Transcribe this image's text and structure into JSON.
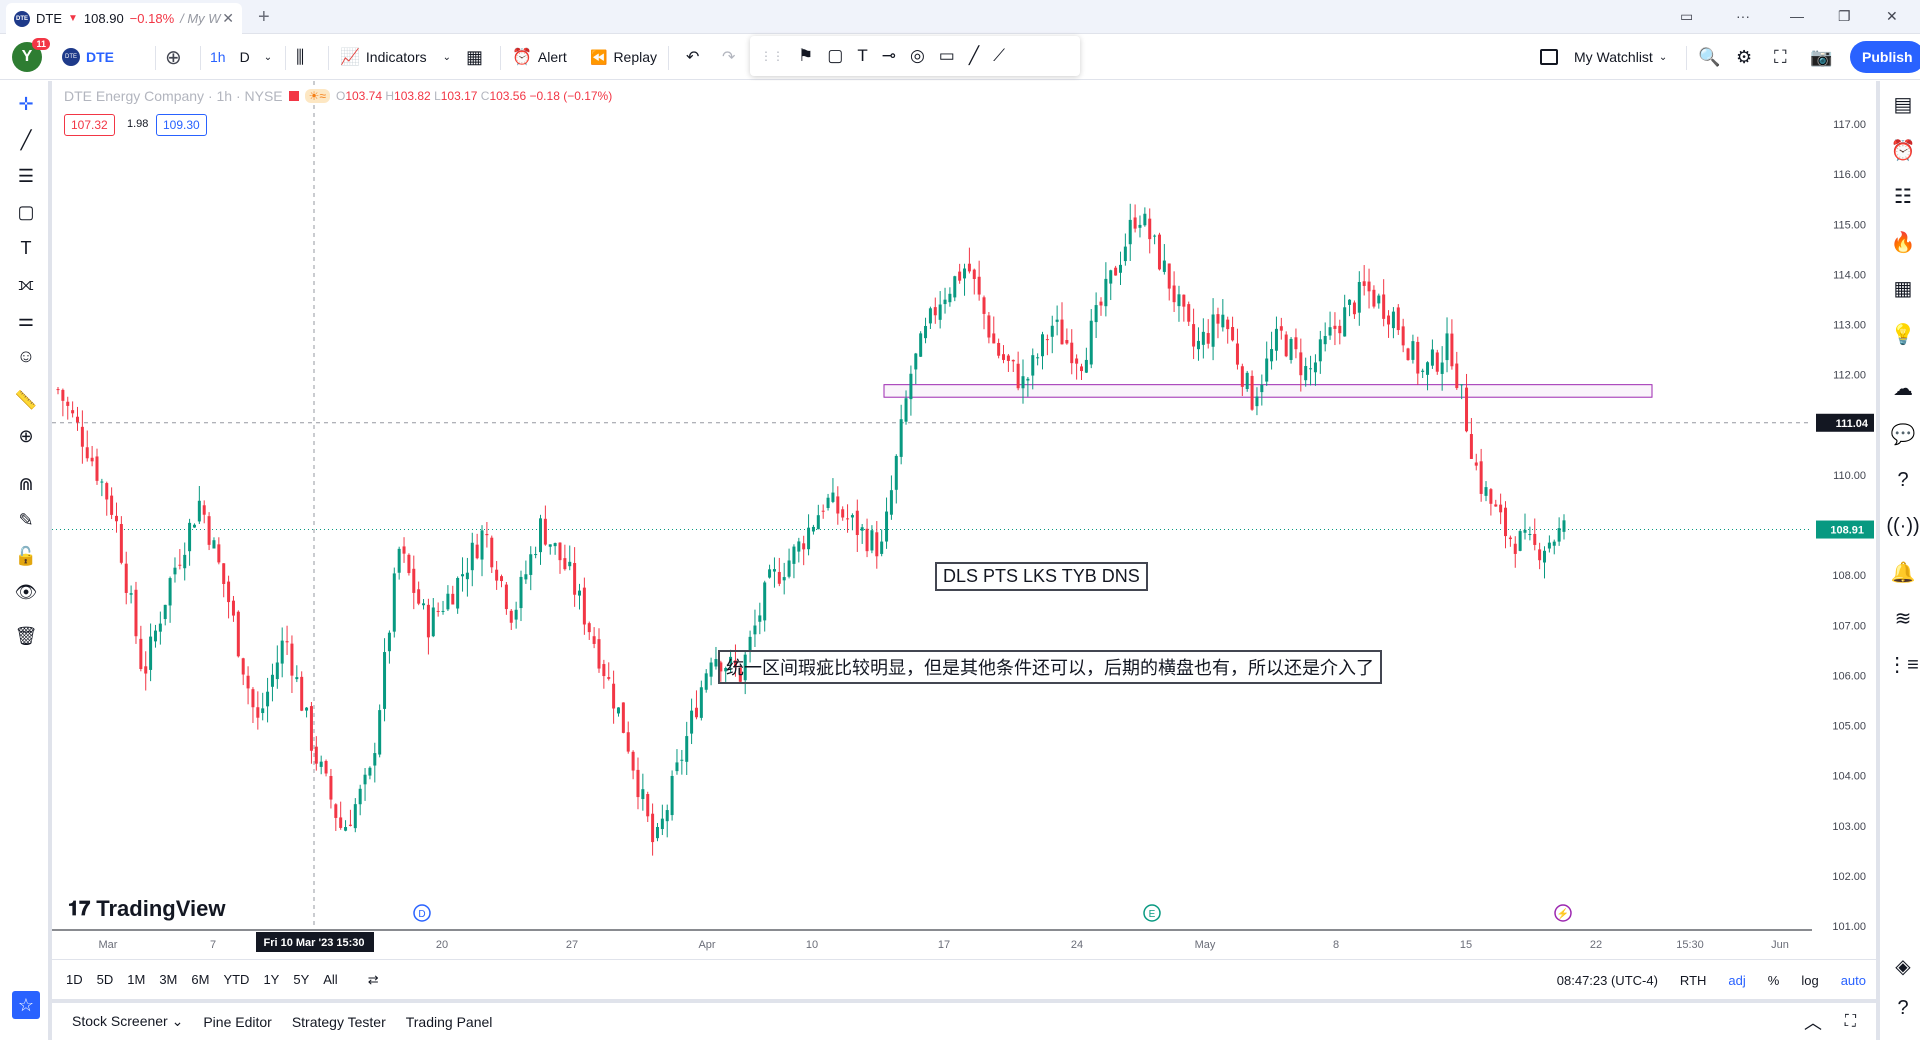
{
  "tab": {
    "symbol": "DTE",
    "price": "108.90",
    "change": "−0.18%",
    "suffix": "/ My W"
  },
  "toolbar": {
    "avatar": "Y",
    "notif": "11",
    "symbol": "DTE",
    "interval": "1h",
    "style": "D",
    "indicators": "Indicators",
    "alert": "Alert",
    "replay": "Replay",
    "watchlist": "My Watchlist",
    "publish": "Publish"
  },
  "legend": {
    "title": "DTE Energy Company · 1h · NYSE",
    "o": "103.74",
    "h": "103.82",
    "l": "103.17",
    "c": "103.56",
    "chg": "−0.18 (−0.17%)",
    "bid": "107.32",
    "spread": "1.98",
    "ask": "109.30"
  },
  "annotations": {
    "tags": "DLS PTS LKS TYB DNS",
    "note": "统一区间瑕疵比较明显，但是其他条件还可以，后期的横盘也有，所以还是介入了"
  },
  "axis": {
    "prices": [
      "117.00",
      "116.00",
      "115.00",
      "114.00",
      "113.00",
      "112.00",
      "111.00",
      "110.00",
      "109.00",
      "108.00",
      "107.00",
      "106.00",
      "105.00",
      "104.00",
      "103.00",
      "102.00",
      "101.00"
    ],
    "times": [
      "Mar",
      "7",
      "20",
      "27",
      "Apr",
      "10",
      "17",
      "24",
      "May",
      "8",
      "15",
      "22",
      "15:30",
      "Jun"
    ],
    "crosshair_time": "Fri 10 Mar '23   15:30",
    "crosshair_price": "111.04",
    "last_price": "108.91"
  },
  "timeframes": [
    "1D",
    "5D",
    "1M",
    "3M",
    "6M",
    "YTD",
    "1Y",
    "5Y",
    "All"
  ],
  "status": {
    "clock": "08:47:23 (UTC-4)",
    "session": "RTH",
    "adj": "adj",
    "pct": "%",
    "log": "log",
    "auto": "auto"
  },
  "panels": [
    "Stock Screener",
    "Pine Editor",
    "Strategy Tester",
    "Trading Panel"
  ],
  "brand": "TradingView",
  "chart_data": {
    "type": "candlestick",
    "symbol": "DTE",
    "interval": "1h",
    "ylim": [
      101,
      117.3
    ],
    "x": [
      "Mar",
      "7",
      "20",
      "27",
      "Apr",
      "10",
      "17",
      "24",
      "May",
      "8",
      "15",
      "22"
    ],
    "close_path": [
      111.7,
      110.6,
      109.2,
      106.0,
      108.0,
      109.5,
      107.5,
      105.0,
      106.8,
      104.5,
      102.9,
      104.0,
      108.5,
      107.0,
      107.8,
      108.9,
      107.2,
      109.0,
      108.0,
      106.5,
      104.8,
      102.5,
      104.5,
      106.5,
      106.0,
      107.8,
      108.5,
      109.5,
      109.0,
      108.5,
      112.0,
      113.5,
      114.2,
      112.5,
      111.8,
      113.0,
      112.3,
      113.8,
      115.3,
      114.0,
      112.5,
      113.2,
      111.5,
      112.8,
      112.0,
      113.0,
      113.7,
      113.2,
      112.0,
      112.6,
      109.9,
      108.8,
      108.5,
      108.91
    ],
    "zone": {
      "top": 111.8,
      "bottom": 111.55
    },
    "crosshair": 111.04,
    "last": 108.91
  }
}
